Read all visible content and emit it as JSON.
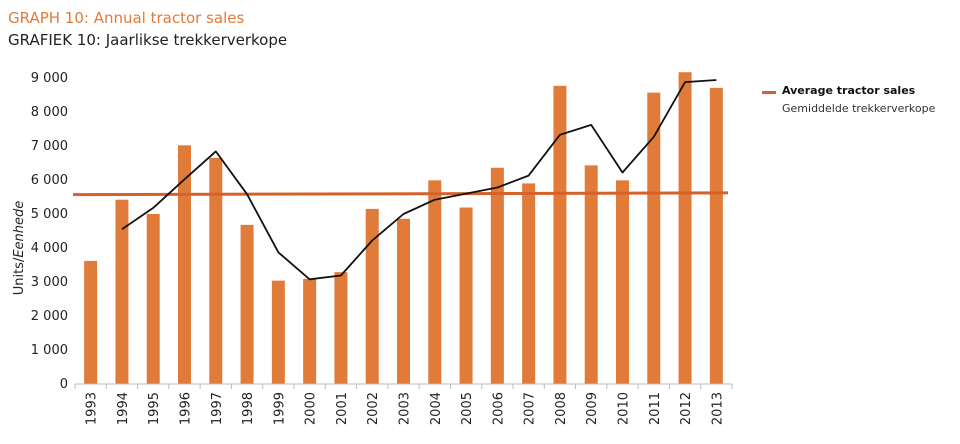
{
  "titles": {
    "english": "GRAPH 10: Annual tractor sales",
    "afrikaans": "GRAFIEK 10: Jaarlikse trekkerverkope"
  },
  "legend": {
    "title": "Average tractor sales",
    "subtitle": "Gemiddelde trekkerverkope"
  },
  "colors": {
    "bar": "#e07b39",
    "average_line": "#d4622a",
    "trend_line": "#111111",
    "title_accent": "#e07b39"
  },
  "chart_data": {
    "type": "bar",
    "title": "GRAPH 10: Annual tractor sales",
    "subtitle": "GRAFIEK 10: Jaarlikse trekkerverkope",
    "ylabel_prefix": "Units/",
    "ylabel_italic": "Eenhede",
    "xlabel": "",
    "ylim": [
      0,
      9000
    ],
    "yticks": [
      0,
      1000,
      2000,
      3000,
      4000,
      5000,
      6000,
      7000,
      8000,
      9000
    ],
    "ytick_labels": [
      "0",
      "1 000",
      "2 000",
      "3 000",
      "4 000",
      "5 000",
      "6 000",
      "7 000",
      "8 000",
      "9 000"
    ],
    "categories": [
      "1993",
      "1994",
      "1995",
      "1996",
      "1997",
      "1998",
      "1999",
      "2000",
      "2001",
      "2002",
      "2003",
      "2004",
      "2005",
      "2006",
      "2007",
      "2008",
      "2009",
      "2010",
      "2011",
      "2012",
      "2013"
    ],
    "values": [
      3620,
      5420,
      5000,
      7020,
      6650,
      4680,
      3040,
      3090,
      3290,
      5150,
      4860,
      5990,
      5190,
      6360,
      5900,
      8770,
      6430,
      5990,
      8570,
      9170,
      8710
    ],
    "trend_line": [
      null,
      4550,
      5180,
      6020,
      6840,
      5580,
      3870,
      3080,
      3190,
      4220,
      5000,
      5420,
      5600,
      5780,
      6130,
      7330,
      7620,
      6220,
      7270,
      8880,
      8940
    ],
    "average_line": {
      "start": 5570,
      "end": 5620
    },
    "legend_placement": "top-right",
    "grid": false
  }
}
